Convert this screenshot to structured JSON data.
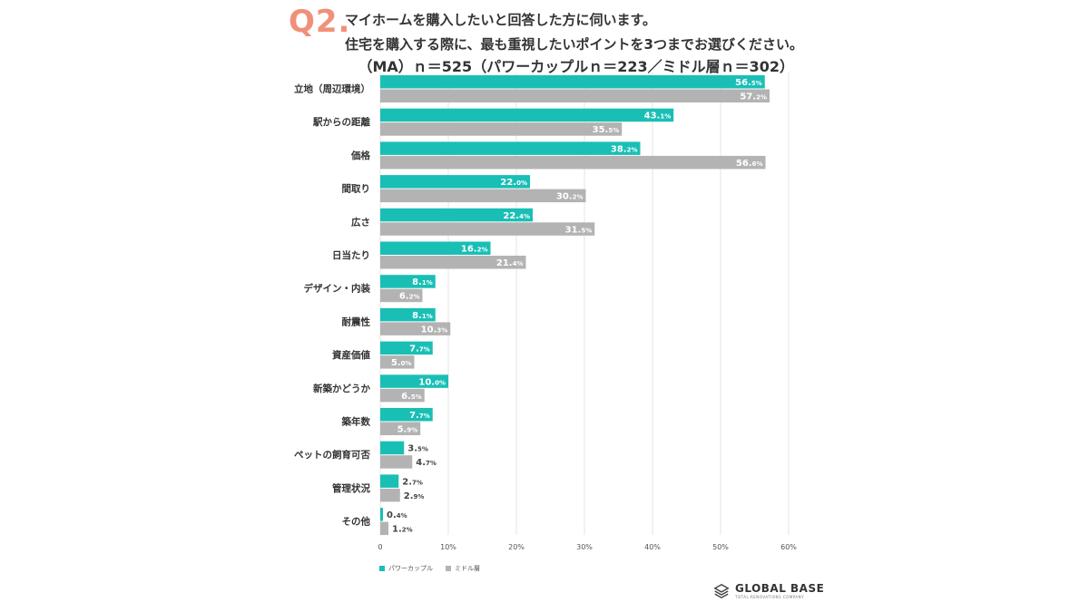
{
  "header": {
    "q_label": "Q2.",
    "line1": "マイホームを購入したいと回答した方に伺います。",
    "line2": "住宅を購入する際に、最も重視したいポイントを3つまでお選びください。",
    "line3": "（MA）ｎ＝525（パワーカップルｎ＝223／ミドル層ｎ＝302）",
    "accent_color": "#f0907a"
  },
  "chart_data": {
    "type": "bar",
    "orientation": "horizontal",
    "categories": [
      "立地（周辺環境）",
      "駅からの距離",
      "価格",
      "間取り",
      "広さ",
      "日当たり",
      "デザイン・内装",
      "耐震性",
      "資産価値",
      "新築かどうか",
      "築年数",
      "ペットの飼育可否",
      "管理状況",
      "その他"
    ],
    "series": [
      {
        "name": "パワーカップル",
        "color": "#19bfb5",
        "values": [
          56.5,
          43.1,
          38.2,
          22.0,
          22.4,
          16.2,
          8.1,
          8.1,
          7.7,
          10.0,
          7.7,
          3.5,
          2.7,
          0.4
        ]
      },
      {
        "name": "ミドル層",
        "color": "#b3b3b3",
        "values": [
          57.2,
          35.5,
          56.6,
          30.2,
          31.5,
          21.4,
          6.2,
          10.3,
          5.0,
          6.5,
          5.9,
          4.7,
          2.9,
          1.2
        ]
      }
    ],
    "xlim": [
      0,
      60
    ],
    "x_ticks": [
      "0",
      "10%",
      "20%",
      "30%",
      "40%",
      "50%",
      "60%"
    ],
    "x_tick_values": [
      0,
      10,
      20,
      30,
      40,
      50,
      60
    ],
    "grid": true,
    "legend": "bottom-left"
  },
  "logo": {
    "main": "GLOBAL BASE",
    "sub": "TOTAL RENOVATIONS COMPANY"
  }
}
